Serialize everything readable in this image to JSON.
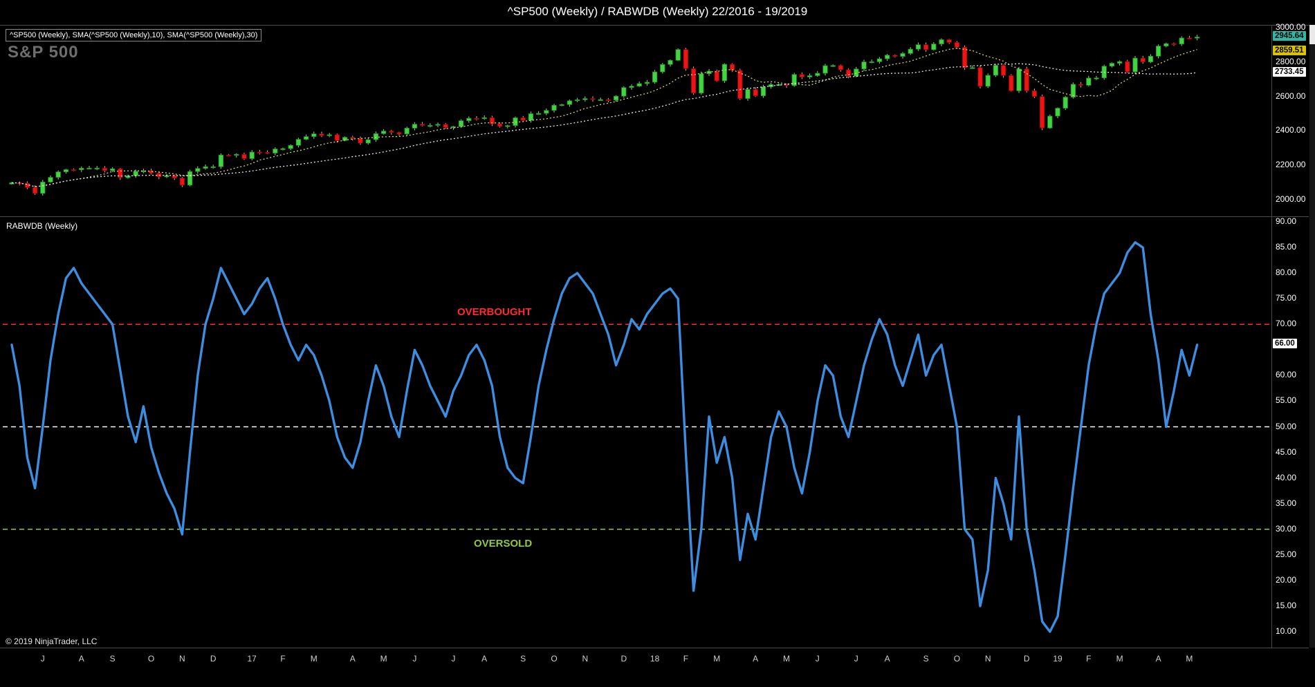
{
  "window": {
    "title": "^SP500 (Weekly) / RABWDB (Weekly)  22/2016 - 19/2019"
  },
  "price_panel": {
    "label": "^SP500 (Weekly), SMA(^SP500 (Weekly),10), SMA(^SP500 (Weekly),30)",
    "watermark": "S&P 500",
    "badges": [
      {
        "name": "last-price-badge",
        "text": "2945.64",
        "value": 2945.64,
        "bg": "#2eb8a8",
        "fg": "#000000"
      },
      {
        "name": "sma10-value-badge",
        "text": "2859.51",
        "value": 2859.51,
        "bg": "#d9c300",
        "fg": "#000000"
      },
      {
        "name": "sma30-value-badge",
        "text": "2733.45",
        "value": 2733.45,
        "bg": "#ffffff",
        "fg": "#000000"
      }
    ]
  },
  "indicator_panel": {
    "label": "RABWDB (Weekly)",
    "badge": {
      "name": "indicator-value-badge",
      "text": "66.00",
      "value": 66,
      "bg": "#ffffff",
      "fg": "#000000"
    }
  },
  "footer": {
    "copyright": "© 2019 NinjaTrader, LLC"
  },
  "colors": {
    "up_candle": "#42d442",
    "up_candle_border": "#1e8a1e",
    "down_candle": "#ec1414",
    "down_candle_border": "#8a0000",
    "wick": "#bdbdbd",
    "sma10": "#d9d96a",
    "sma30": "#eaeaea",
    "indicator_line": "#3d8ee0",
    "overbought": "#ff2a2a",
    "midline": "#ffffff",
    "oversold": "#8fca3a",
    "panel_border": "#4a4a4a"
  },
  "x_axis": {
    "labels": [
      {
        "label": "J",
        "week": 4
      },
      {
        "label": "A",
        "week": 9
      },
      {
        "label": "S",
        "week": 13
      },
      {
        "label": "O",
        "week": 18
      },
      {
        "label": "N",
        "week": 22
      },
      {
        "label": "D",
        "week": 26
      },
      {
        "label": "17",
        "week": 31
      },
      {
        "label": "F",
        "week": 35
      },
      {
        "label": "M",
        "week": 39
      },
      {
        "label": "A",
        "week": 44
      },
      {
        "label": "M",
        "week": 48
      },
      {
        "label": "J",
        "week": 52
      },
      {
        "label": "J",
        "week": 57
      },
      {
        "label": "A",
        "week": 61
      },
      {
        "label": "S",
        "week": 66
      },
      {
        "label": "O",
        "week": 70
      },
      {
        "label": "N",
        "week": 74
      },
      {
        "label": "D",
        "week": 79
      },
      {
        "label": "18",
        "week": 83
      },
      {
        "label": "F",
        "week": 87
      },
      {
        "label": "M",
        "week": 91
      },
      {
        "label": "A",
        "week": 96
      },
      {
        "label": "M",
        "week": 100
      },
      {
        "label": "J",
        "week": 104
      },
      {
        "label": "J",
        "week": 109
      },
      {
        "label": "A",
        "week": 113
      },
      {
        "label": "S",
        "week": 118
      },
      {
        "label": "O",
        "week": 122
      },
      {
        "label": "N",
        "week": 126
      },
      {
        "label": "D",
        "week": 131
      },
      {
        "label": "19",
        "week": 135
      },
      {
        "label": "F",
        "week": 139
      },
      {
        "label": "M",
        "week": 143
      },
      {
        "label": "A",
        "week": 148
      },
      {
        "label": "M",
        "week": 152
      }
    ]
  },
  "chart_data": [
    {
      "type": "candlestick",
      "name": "^SP500 (Weekly)",
      "overlays": [
        "SMA(10)",
        "SMA(30)"
      ],
      "x_start": "week 22/2016",
      "x_end": "week 19/2019",
      "ylim": [
        1950,
        3060
      ],
      "y_ticks": [
        3000,
        2800,
        2600,
        2400,
        2200,
        2000
      ],
      "last_close": 2945.64,
      "sma10_last": 2859.51,
      "sma30_last": 2733.45,
      "closes": [
        2099,
        2096,
        2071,
        2037,
        2103,
        2130,
        2162,
        2175,
        2174,
        2183,
        2184,
        2184,
        2169,
        2180,
        2128,
        2139,
        2165,
        2168,
        2154,
        2133,
        2141,
        2126,
        2085,
        2164,
        2182,
        2192,
        2192,
        2260,
        2258,
        2264,
        2239,
        2277,
        2275,
        2271,
        2295,
        2297,
        2316,
        2351,
        2367,
        2383,
        2373,
        2378,
        2344,
        2363,
        2356,
        2329,
        2349,
        2384,
        2399,
        2391,
        2382,
        2416,
        2439,
        2432,
        2432,
        2438,
        2419,
        2425,
        2459,
        2473,
        2472,
        2477,
        2441,
        2426,
        2431,
        2476,
        2461,
        2500,
        2502,
        2519,
        2549,
        2553,
        2575,
        2581,
        2588,
        2582,
        2582,
        2579,
        2602,
        2652,
        2660,
        2675,
        2683,
        2743,
        2786,
        2810,
        2873,
        2762,
        2620,
        2732,
        2747,
        2691,
        2787,
        2752,
        2588,
        2641,
        2604,
        2656,
        2670,
        2670,
        2663,
        2728,
        2713,
        2721,
        2735,
        2779,
        2780,
        2755,
        2718,
        2760,
        2801,
        2802,
        2819,
        2840,
        2833,
        2850,
        2875,
        2901,
        2872,
        2905,
        2930,
        2914,
        2886,
        2767,
        2768,
        2659,
        2723,
        2781,
        2722,
        2633,
        2760,
        2633,
        2600,
        2417,
        2486,
        2532,
        2596,
        2671,
        2665,
        2707,
        2708,
        2776,
        2793,
        2803,
        2743,
        2823,
        2801,
        2834,
        2893,
        2907,
        2905,
        2940,
        2939,
        2945.64
      ]
    },
    {
      "type": "line",
      "name": "RABWDB (Weekly)",
      "x_start": "week 22/2016",
      "x_end": "week 19/2019",
      "ylim": [
        8,
        92
      ],
      "y_ticks": [
        90,
        85,
        80,
        75,
        70,
        60,
        55,
        50,
        45,
        40,
        35,
        30,
        25,
        20,
        15,
        10
      ],
      "last_value": 66.0,
      "levels": [
        {
          "value": 70,
          "label": "OVERBOUGHT",
          "color": "#ff2a2a",
          "style": "dashed"
        },
        {
          "value": 50,
          "label": "",
          "color": "#ffffff",
          "style": "dashed"
        },
        {
          "value": 30,
          "label": "OVERSOLD",
          "color": "#8fca3a",
          "style": "dashed"
        }
      ],
      "values": [
        66,
        58,
        44,
        38,
        50,
        63,
        72,
        79,
        81,
        78,
        76,
        74,
        72,
        70,
        61,
        52,
        47,
        54,
        46,
        41,
        37,
        34,
        29,
        45,
        60,
        70,
        75,
        81,
        78,
        75,
        72,
        74,
        77,
        79,
        75,
        70,
        66,
        63,
        66,
        64,
        60,
        55,
        48,
        44,
        42,
        47,
        55,
        62,
        58,
        52,
        48,
        57,
        65,
        62,
        58,
        55,
        52,
        57,
        60,
        64,
        66,
        63,
        58,
        48,
        42,
        40,
        39,
        48,
        58,
        65,
        71,
        76,
        79,
        80,
        78,
        76,
        72,
        68,
        62,
        66,
        71,
        69,
        72,
        74,
        76,
        77,
        75,
        45,
        18,
        30,
        52,
        43,
        48,
        40,
        24,
        33,
        28,
        38,
        48,
        53,
        50,
        42,
        37,
        45,
        55,
        62,
        60,
        52,
        48,
        55,
        62,
        67,
        71,
        68,
        62,
        58,
        63,
        68,
        60,
        64,
        66,
        58,
        50,
        30,
        28,
        15,
        22,
        40,
        35,
        28,
        52,
        30,
        22,
        12,
        10,
        13,
        25,
        38,
        50,
        62,
        70,
        76,
        78,
        80,
        84,
        86,
        85,
        72,
        63,
        50,
        57,
        65,
        60,
        66
      ]
    }
  ]
}
